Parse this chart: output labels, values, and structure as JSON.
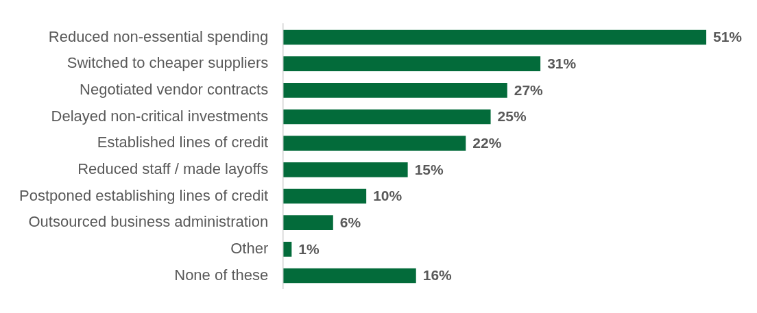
{
  "chart_data": {
    "type": "bar",
    "orientation": "horizontal",
    "categories": [
      "Reduced non-essential spending",
      "Switched to cheaper suppliers",
      "Negotiated vendor contracts",
      "Delayed non-critical investments",
      "Established lines of credit",
      "Reduced staff / made layoffs",
      "Postponed establishing lines of credit",
      "Outsourced business administration",
      "Other",
      "None of these"
    ],
    "values": [
      51,
      31,
      27,
      25,
      22,
      15,
      10,
      6,
      1,
      16
    ],
    "value_labels": [
      "51%",
      "31%",
      "27%",
      "25%",
      "22%",
      "15%",
      "10%",
      "6%",
      "1%",
      "16%"
    ],
    "color": "#036b3a",
    "legend": false,
    "tick_labels": "y"
  }
}
